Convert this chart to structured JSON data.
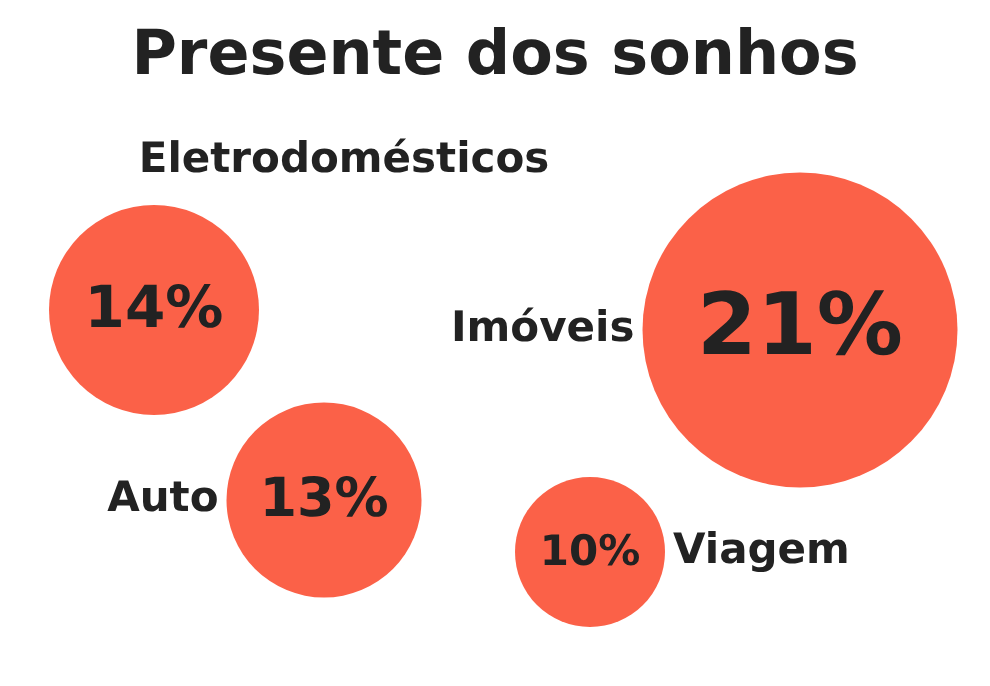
{
  "chart_data": {
    "type": "other",
    "title": "Presente dos sonhos",
    "categories": [
      "Eletrodomésticos",
      "Imóveis",
      "Auto",
      "Viagem"
    ],
    "values": [
      14,
      21,
      13,
      10
    ],
    "value_labels": [
      "14%",
      "21%",
      "13%",
      "10%"
    ],
    "colors": [
      "#fb6148",
      "#fb6148",
      "#fb6148",
      "#fb6148"
    ]
  }
}
